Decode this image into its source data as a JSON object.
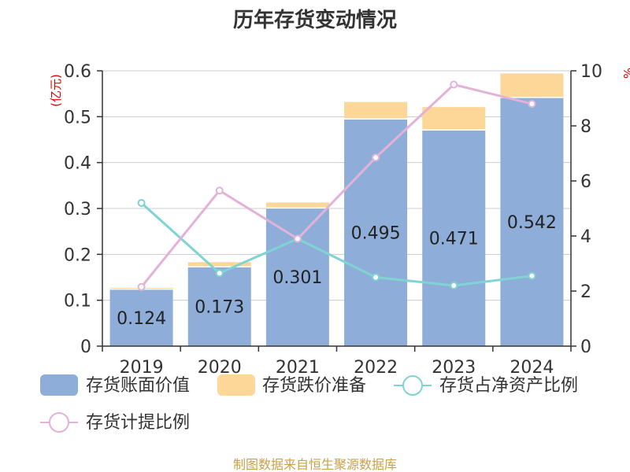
{
  "title": "历年存货变动情况",
  "left_axis_unit": "(亿元)",
  "right_axis_unit": "%",
  "source": "制图数据来自恒生聚源数据库",
  "colors": {
    "book_value": "#8eaed9",
    "impairment": "#fdd797",
    "net_asset_ratio": "#7fd3d3",
    "provision_ratio": "#e2b2d9"
  },
  "chart_data": {
    "type": "bar",
    "categories": [
      "2019",
      "2020",
      "2021",
      "2022",
      "2023",
      "2024"
    ],
    "series": [
      {
        "name": "存货账面价值",
        "type": "bar",
        "stack": "inv",
        "axis": "left",
        "values": [
          0.124,
          0.173,
          0.301,
          0.495,
          0.471,
          0.542
        ],
        "labels": [
          "0.124",
          "0.173",
          "0.301",
          "0.495",
          "0.471",
          "0.542"
        ]
      },
      {
        "name": "存货跌价准备",
        "type": "bar",
        "stack": "inv",
        "axis": "left",
        "values": [
          0.003,
          0.01,
          0.012,
          0.037,
          0.05,
          0.052
        ]
      },
      {
        "name": "存货占净资产比例",
        "type": "line",
        "axis": "right",
        "values": [
          5.2,
          2.65,
          3.9,
          2.5,
          2.2,
          2.55
        ]
      },
      {
        "name": "存货计提比例",
        "type": "line",
        "axis": "right",
        "values": [
          2.15,
          5.65,
          3.9,
          6.85,
          9.5,
          8.8
        ]
      }
    ],
    "y_left": {
      "min": 0,
      "max": 0.6,
      "ticks": [
        "0",
        "0.1",
        "0.2",
        "0.3",
        "0.4",
        "0.5",
        "0.6"
      ]
    },
    "y_right": {
      "min": 0,
      "max": 10,
      "ticks": [
        "0",
        "2",
        "4",
        "6",
        "8",
        "10"
      ]
    },
    "grid": true,
    "legend_position": "bottom"
  }
}
